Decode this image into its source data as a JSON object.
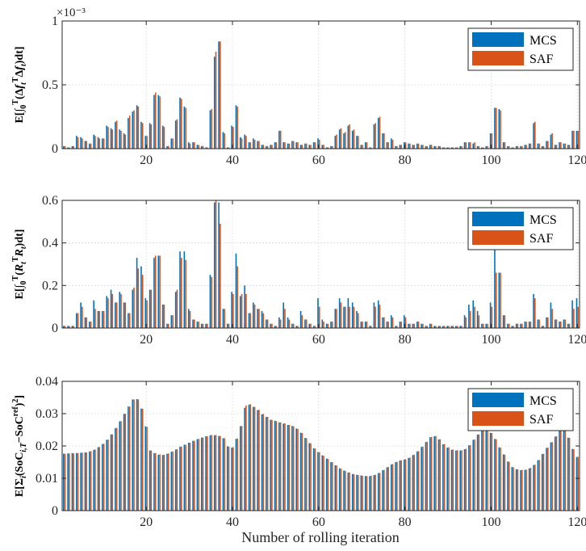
{
  "chart_data": [
    {
      "type": "bar",
      "panel": "top",
      "ylabel_parts": [
        "E[∫",
        "0",
        "T",
        "(Δ",
        "f",
        "t",
        "T",
        "Δ",
        "f",
        "t",
        ")dt]"
      ],
      "exponent_label": "×10⁻³",
      "ylim": [
        0,
        1
      ],
      "yticks": [
        0,
        0.5,
        1
      ],
      "ytick_labels": [
        "0",
        "0.5",
        "1"
      ],
      "xlim": [
        0.5,
        120.5
      ],
      "xticks": [
        20,
        40,
        60,
        80,
        100,
        120
      ],
      "x_start": 1,
      "series": [
        {
          "name": "MCS",
          "color": "#0072BD",
          "values": [
            0.02,
            0.01,
            0.02,
            0.1,
            0.09,
            0.06,
            0.04,
            0.11,
            0.09,
            0.08,
            0.18,
            0.16,
            0.21,
            0.15,
            0.12,
            0.24,
            0.29,
            0.34,
            0.21,
            0.1,
            0.2,
            0.42,
            0.42,
            0.18,
            0.02,
            0.08,
            0.22,
            0.4,
            0.33,
            0.05,
            0.05,
            0.03,
            0.02,
            0.01,
            0.3,
            0.72,
            0.84,
            0.13,
            0.01,
            0.18,
            0.34,
            0.09,
            0.11,
            0.05,
            0.08,
            0.06,
            0.03,
            0.02,
            0.03,
            0.05,
            0.14,
            0.05,
            0.04,
            0.06,
            0.05,
            0.03,
            0.04,
            0.03,
            0.05,
            0.08,
            0.03,
            0.01,
            0.02,
            0.1,
            0.15,
            0.12,
            0.18,
            0.14,
            0.1,
            0.03,
            0.05,
            0.01,
            0.19,
            0.24,
            0.12,
            0.05,
            0.08,
            0.02,
            0.03,
            0.05,
            0.04,
            0.03,
            0.04,
            0.03,
            0.02,
            0.03,
            0.02,
            0.02,
            0.01,
            0.01,
            0.01,
            0.01,
            0.02,
            0.05,
            0.05,
            0.04,
            0.02,
            0.01,
            0.02,
            0.12,
            0.32,
            0.31,
            0.05,
            0.02,
            0.01,
            0.02,
            0.02,
            0.03,
            0.04,
            0.2,
            0.04,
            0.02,
            0.06,
            0.11,
            0.03,
            0.05,
            0.04,
            0.03,
            0.14,
            0.14
          ]
        },
        {
          "name": "SAF",
          "color": "#D95319",
          "values": [
            0.02,
            0.01,
            0.02,
            0.09,
            0.08,
            0.06,
            0.04,
            0.1,
            0.08,
            0.08,
            0.17,
            0.15,
            0.22,
            0.14,
            0.11,
            0.26,
            0.3,
            0.33,
            0.2,
            0.1,
            0.19,
            0.44,
            0.41,
            0.17,
            0.02,
            0.08,
            0.23,
            0.39,
            0.32,
            0.04,
            0.05,
            0.03,
            0.02,
            0.01,
            0.31,
            0.76,
            0.84,
            0.12,
            0.01,
            0.17,
            0.33,
            0.08,
            0.1,
            0.05,
            0.07,
            0.06,
            0.03,
            0.02,
            0.03,
            0.05,
            0.14,
            0.05,
            0.04,
            0.06,
            0.05,
            0.03,
            0.04,
            0.03,
            0.05,
            0.07,
            0.03,
            0.01,
            0.02,
            0.11,
            0.16,
            0.13,
            0.19,
            0.15,
            0.1,
            0.03,
            0.05,
            0.01,
            0.2,
            0.25,
            0.12,
            0.05,
            0.07,
            0.02,
            0.03,
            0.05,
            0.04,
            0.03,
            0.04,
            0.03,
            0.02,
            0.03,
            0.02,
            0.02,
            0.01,
            0.01,
            0.01,
            0.01,
            0.02,
            0.05,
            0.05,
            0.05,
            0.02,
            0.01,
            0.02,
            0.12,
            0.32,
            0.3,
            0.05,
            0.02,
            0.01,
            0.02,
            0.02,
            0.03,
            0.04,
            0.21,
            0.04,
            0.02,
            0.06,
            0.12,
            0.03,
            0.05,
            0.04,
            0.03,
            0.14,
            0.14
          ]
        }
      ]
    },
    {
      "type": "bar",
      "panel": "middle",
      "ylabel_parts": [
        "E[∫",
        "0",
        "T",
        "(",
        "R",
        "t",
        "T",
        "R",
        "t",
        ")dt]"
      ],
      "ylim": [
        0,
        0.6
      ],
      "yticks": [
        0,
        0.2,
        0.4,
        0.6
      ],
      "ytick_labels": [
        "0",
        "0.2",
        "0.4",
        "0.6"
      ],
      "xlim": [
        0.5,
        120.5
      ],
      "xticks": [
        20,
        40,
        60,
        80,
        100,
        120
      ],
      "x_start": 1,
      "series": [
        {
          "name": "MCS",
          "color": "#0072BD",
          "values": [
            0.01,
            0.01,
            0.01,
            0.07,
            0.12,
            0.05,
            0.03,
            0.13,
            0.08,
            0.08,
            0.15,
            0.18,
            0.12,
            0.17,
            0.12,
            0.07,
            0.18,
            0.33,
            0.29,
            0.14,
            0.18,
            0.33,
            0.34,
            0.11,
            0.02,
            0.06,
            0.17,
            0.36,
            0.36,
            0.09,
            0.04,
            0.03,
            0.02,
            0.02,
            0.25,
            0.59,
            0.59,
            0.09,
            0.02,
            0.17,
            0.35,
            0.15,
            0.2,
            0.07,
            0.12,
            0.09,
            0.08,
            0.04,
            0.02,
            0.01,
            0.05,
            0.12,
            0.05,
            0.02,
            0.01,
            0.08,
            0.04,
            0.02,
            0.01,
            0.14,
            0.04,
            0.02,
            0.03,
            0.09,
            0.14,
            0.1,
            0.14,
            0.12,
            0.08,
            0.03,
            0.03,
            0.01,
            0.12,
            0.13,
            0.05,
            0.03,
            0.06,
            0.01,
            0.03,
            0.06,
            0.02,
            0.02,
            0.03,
            0.02,
            0.01,
            0.02,
            0.01,
            0.01,
            0.01,
            0.01,
            0.01,
            0.01,
            0.01,
            0.06,
            0.11,
            0.13,
            0.08,
            0.02,
            0.02,
            0.12,
            0.45,
            0.26,
            0.06,
            0.02,
            0.01,
            0.02,
            0.02,
            0.03,
            0.03,
            0.16,
            0.04,
            0.01,
            0.05,
            0.12,
            0.04,
            0.03,
            0.04,
            0.02,
            0.13,
            0.14
          ]
        },
        {
          "name": "SAF",
          "color": "#D95319",
          "values": [
            0.01,
            0.01,
            0.01,
            0.07,
            0.1,
            0.05,
            0.03,
            0.09,
            0.08,
            0.08,
            0.14,
            0.16,
            0.12,
            0.16,
            0.12,
            0.07,
            0.19,
            0.28,
            0.25,
            0.13,
            0.18,
            0.34,
            0.34,
            0.11,
            0.02,
            0.06,
            0.18,
            0.33,
            0.32,
            0.08,
            0.04,
            0.03,
            0.02,
            0.02,
            0.24,
            0.6,
            0.49,
            0.09,
            0.02,
            0.16,
            0.29,
            0.16,
            0.16,
            0.07,
            0.11,
            0.09,
            0.07,
            0.04,
            0.02,
            0.01,
            0.04,
            0.09,
            0.04,
            0.02,
            0.01,
            0.06,
            0.04,
            0.02,
            0.01,
            0.1,
            0.03,
            0.02,
            0.03,
            0.09,
            0.12,
            0.1,
            0.1,
            0.1,
            0.07,
            0.03,
            0.03,
            0.01,
            0.1,
            0.11,
            0.05,
            0.03,
            0.05,
            0.01,
            0.03,
            0.05,
            0.02,
            0.02,
            0.03,
            0.02,
            0.01,
            0.02,
            0.01,
            0.01,
            0.01,
            0.01,
            0.01,
            0.01,
            0.01,
            0.05,
            0.08,
            0.1,
            0.06,
            0.02,
            0.02,
            0.1,
            0.26,
            0.26,
            0.06,
            0.02,
            0.01,
            0.02,
            0.02,
            0.03,
            0.03,
            0.14,
            0.04,
            0.01,
            0.05,
            0.09,
            0.04,
            0.03,
            0.04,
            0.02,
            0.09,
            0.1
          ]
        }
      ]
    },
    {
      "type": "bar",
      "panel": "bottom",
      "ylabel_parts": [
        "E[Σ",
        "i",
        "(SoC",
        "i,T",
        "−SoC",
        "ref",
        ")",
        "2",
        "]"
      ],
      "ylim": [
        0,
        0.04
      ],
      "yticks": [
        0,
        0.01,
        0.02,
        0.03,
        0.04
      ],
      "ytick_labels": [
        "0",
        "0.01",
        "0.02",
        "0.03",
        "0.04"
      ],
      "xlim": [
        0.5,
        120.5
      ],
      "xticks": [
        20,
        40,
        60,
        80,
        100,
        120
      ],
      "xlabel": "Number of rolling iteration",
      "x_start": 1,
      "series": [
        {
          "name": "MCS",
          "color": "#0072BD",
          "values": [
            0.0176,
            0.0177,
            0.0178,
            0.0178,
            0.0179,
            0.018,
            0.0183,
            0.0188,
            0.0196,
            0.0206,
            0.0219,
            0.0236,
            0.0255,
            0.0276,
            0.0299,
            0.0322,
            0.0344,
            0.0345,
            0.0316,
            0.0261,
            0.0186,
            0.0178,
            0.0173,
            0.0172,
            0.0176,
            0.0182,
            0.0189,
            0.0198,
            0.0204,
            0.021,
            0.0216,
            0.0221,
            0.0226,
            0.023,
            0.0233,
            0.0233,
            0.0231,
            0.0224,
            0.0199,
            0.0195,
            0.0222,
            0.0261,
            0.0318,
            0.0328,
            0.0321,
            0.0311,
            0.0298,
            0.029,
            0.0281,
            0.0278,
            0.0273,
            0.0269,
            0.0265,
            0.0262,
            0.0254,
            0.0241,
            0.0225,
            0.0209,
            0.0193,
            0.0181,
            0.0171,
            0.0161,
            0.015,
            0.014,
            0.0131,
            0.0124,
            0.0118,
            0.0113,
            0.0111,
            0.0109,
            0.0107,
            0.0107,
            0.011,
            0.0116,
            0.0125,
            0.0134,
            0.0143,
            0.015,
            0.0155,
            0.0158,
            0.0163,
            0.0172,
            0.0183,
            0.0197,
            0.0212,
            0.0227,
            0.023,
            0.022,
            0.0205,
            0.0195,
            0.0188,
            0.0186,
            0.0186,
            0.019,
            0.0202,
            0.0219,
            0.0235,
            0.0248,
            0.0249,
            0.0241,
            0.0222,
            0.0196,
            0.0174,
            0.0152,
            0.0135,
            0.0128,
            0.0125,
            0.0126,
            0.0131,
            0.0141,
            0.0156,
            0.0175,
            0.0194,
            0.0211,
            0.0229,
            0.025,
            0.0249,
            0.0226,
            0.0191,
            0.0166
          ]
        },
        {
          "name": "SAF",
          "color": "#D95319",
          "values": [
            0.0176,
            0.0177,
            0.0177,
            0.0178,
            0.0179,
            0.018,
            0.0184,
            0.0189,
            0.0197,
            0.0207,
            0.022,
            0.0236,
            0.0256,
            0.0277,
            0.03,
            0.0322,
            0.0344,
            0.0344,
            0.0315,
            0.0259,
            0.0186,
            0.0178,
            0.0174,
            0.0173,
            0.0177,
            0.0183,
            0.019,
            0.0198,
            0.0204,
            0.021,
            0.0216,
            0.0222,
            0.0226,
            0.023,
            0.0234,
            0.0234,
            0.0231,
            0.0224,
            0.0198,
            0.0196,
            0.0223,
            0.0262,
            0.0325,
            0.0329,
            0.0321,
            0.0312,
            0.0299,
            0.029,
            0.0281,
            0.0277,
            0.0273,
            0.027,
            0.0265,
            0.0261,
            0.0253,
            0.024,
            0.0224,
            0.0208,
            0.0192,
            0.0181,
            0.017,
            0.016,
            0.015,
            0.014,
            0.013,
            0.0123,
            0.0118,
            0.0113,
            0.011,
            0.0108,
            0.0107,
            0.0108,
            0.0111,
            0.0117,
            0.0126,
            0.0135,
            0.0144,
            0.0151,
            0.0156,
            0.0159,
            0.0164,
            0.0173,
            0.0184,
            0.0198,
            0.0213,
            0.0228,
            0.0231,
            0.0221,
            0.0206,
            0.0196,
            0.0189,
            0.0187,
            0.0187,
            0.0191,
            0.0203,
            0.022,
            0.0236,
            0.0249,
            0.025,
            0.024,
            0.0221,
            0.0195,
            0.0173,
            0.0151,
            0.0134,
            0.0128,
            0.0126,
            0.0127,
            0.0132,
            0.0142,
            0.0157,
            0.0176,
            0.0195,
            0.0212,
            0.023,
            0.0248,
            0.025,
            0.0225,
            0.019,
            0.0166
          ]
        }
      ]
    }
  ]
}
